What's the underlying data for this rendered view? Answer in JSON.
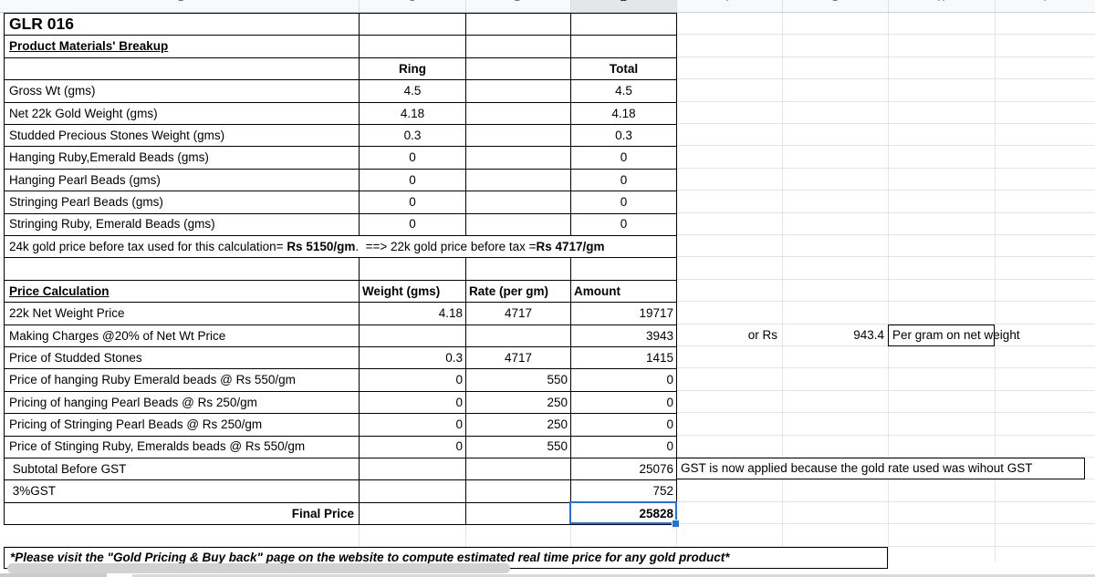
{
  "sheet": {
    "column_letters": [
      "B",
      "C",
      "D",
      "E",
      "F",
      "G",
      "H",
      "I"
    ],
    "selected_column_letter": "E"
  },
  "materials": {
    "product_code": "GLR 016",
    "section_title": "Product Materials' Breakup",
    "columns": {
      "ring": "Ring",
      "total": "Total"
    },
    "rows": [
      {
        "label": "Gross Wt (gms)",
        "ring": "4.5",
        "total": "4.5"
      },
      {
        "label": "Net 22k Gold Weight (gms)",
        "ring": "4.18",
        "total": "4.18"
      },
      {
        "label": "Studded Precious Stones Weight (gms)",
        "ring": "0.3",
        "total": "0.3"
      },
      {
        "label": "Hanging Ruby,Emerald Beads (gms)",
        "ring": "0",
        "total": "0"
      },
      {
        "label": "Hanging Pearl Beads (gms)",
        "ring": "0",
        "total": "0"
      },
      {
        "label": "Stringing Pearl Beads (gms)",
        "ring": "0",
        "total": "0"
      },
      {
        "label": "Stringing Ruby, Emerald Beads (gms)",
        "ring": "0",
        "total": "0"
      }
    ]
  },
  "rate_note": {
    "part1": "24k gold price before tax used for this calculation= ",
    "bold1": "Rs 5150/gm",
    "part2": ".  ==> 22k gold price before tax =",
    "bold2": "Rs 4717/gm"
  },
  "price_calc": {
    "section_title": "Price Calculation",
    "columns": {
      "weight": "Weight (gms)",
      "rate": "Rate (per gm)",
      "amount": "Amount"
    },
    "rows": [
      {
        "label": "22k Net Weight Price",
        "weight": "4.18",
        "rate": "4717",
        "rate_align": "center",
        "amount": "19717"
      },
      {
        "label": "Making Charges @20% of Net Wt Price",
        "weight": "",
        "rate": "",
        "rate_align": "right",
        "amount": "3943"
      },
      {
        "label": "Price of Studded Stones",
        "weight": "0.3",
        "rate": "4717",
        "rate_align": "center",
        "amount": "1415"
      },
      {
        "label": "Price of hanging Ruby Emerald beads @ Rs 550/gm",
        "weight": "0",
        "rate": "550",
        "rate_align": "right",
        "amount": "0"
      },
      {
        "label": "Pricing of hanging Pearl Beads @ Rs 250/gm",
        "weight": "0",
        "rate": "250",
        "rate_align": "right",
        "amount": "0"
      },
      {
        "label": "Pricing of Stringing Pearl Beads @ Rs 250/gm",
        "weight": "0",
        "rate": "250",
        "rate_align": "right",
        "amount": "0"
      },
      {
        "label": "Price of Stinging Ruby, Emeralds beads @ Rs 550/gm",
        "weight": "0",
        "rate": "550",
        "rate_align": "right",
        "amount": "0"
      },
      {
        "label": " Subtotal Before GST",
        "weight": "",
        "rate": "",
        "rate_align": "right",
        "amount": "25076"
      },
      {
        "label": " 3%GST",
        "weight": "",
        "rate": "",
        "rate_align": "right",
        "amount": "752"
      },
      {
        "label": "Final Price",
        "label_bold": true,
        "label_align": "right",
        "weight": "",
        "rate": "",
        "rate_align": "right",
        "amount": "25828",
        "amount_bold": true,
        "selected": true
      }
    ]
  },
  "side": {
    "or_rs": "or Rs",
    "per_gram_value": "943.4",
    "per_gram_label": "Per gram on net weight",
    "gst_note": "GST is now applied because the gold rate used was wihout GST"
  },
  "footer": {
    "note": "*Please visit the \"Gold Pricing & Buy back\" page on the website to compute estimated real time price for any gold product*"
  },
  "colors": {
    "selection": "#1a73e8",
    "cell_border": "#000000",
    "gridline": "#e4e4e4",
    "header_bg": "#f8f9fa",
    "header_selected_bg": "#e4e6e9"
  }
}
